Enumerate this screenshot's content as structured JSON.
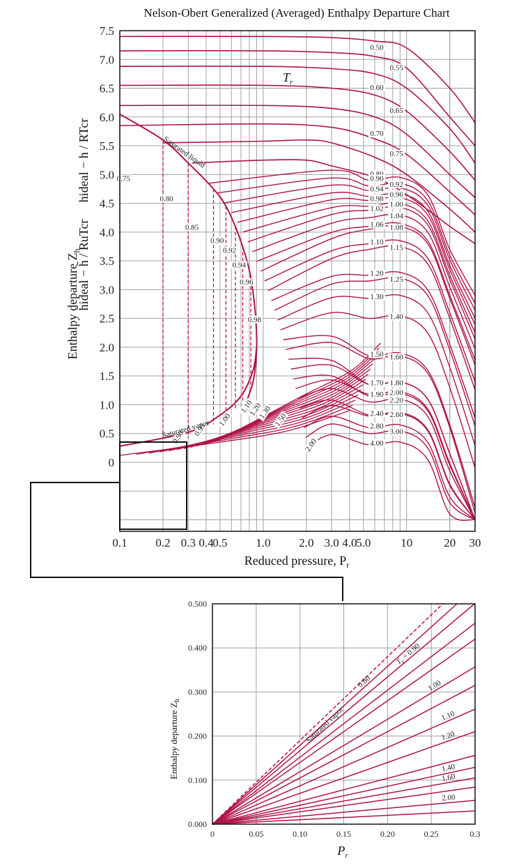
{
  "chart_data": [
    {
      "id": "main",
      "type": "line",
      "title": "Nelson-Obert Generalized (Averaged) Enthalpy Departure Chart",
      "xlabel": "Reduced pressure, P",
      "xlabel_sub": "r",
      "ylabel_main": "Enthalpy departure Z",
      "ylabel_sub": "h",
      "ylabel_formula_1": "h̄ideal − h̄ / RuTcr",
      "ylabel_formula_2": "hideal − h / RTcr",
      "x_scale": "log",
      "xlim": [
        0.1,
        30
      ],
      "ylim": [
        -1.2,
        7.5
      ],
      "y_ticks": [
        "7.5",
        "7.0",
        "6.5",
        "6.0",
        "5.5",
        "5.0",
        "4.5",
        "4.0",
        "3.5",
        "3.0",
        "2.5",
        "2.0",
        "1.5",
        "1.0",
        "0.5",
        "0"
      ],
      "y_tick_values": [
        7.5,
        7.0,
        6.5,
        6.0,
        5.5,
        5.0,
        4.5,
        4.0,
        3.5,
        3.0,
        2.5,
        2.0,
        1.5,
        1.0,
        0.5,
        0
      ],
      "x_ticks": [
        "0.1",
        "0.2",
        "0.3",
        "0.4",
        "0.5",
        "1.0",
        "2.0",
        "3.0",
        "4.0",
        "5.0",
        "10",
        "20",
        "30"
      ],
      "x_tick_values": [
        0.1,
        0.2,
        0.3,
        0.4,
        0.5,
        1.0,
        2.0,
        3.0,
        4.0,
        5.0,
        10,
        20,
        30
      ],
      "grid": true,
      "tr_symbol": "T",
      "tr_symbol_sub": "r",
      "saturated_liquid_label": "Saturated liquid",
      "saturated_vapor_label": "Saturated vapor",
      "saturated_liquid": {
        "x": [
          0.1,
          0.2,
          0.3,
          0.45,
          0.55,
          0.65,
          0.75,
          0.82,
          0.88,
          0.9,
          0.85,
          0.72
        ],
        "y": [
          6.05,
          5.6,
          5.2,
          4.75,
          4.45,
          4.05,
          3.6,
          3.2,
          2.6,
          2.0,
          1.4,
          0.9
        ]
      },
      "saturated_vapor": {
        "x": [
          0.1,
          0.3,
          0.5,
          0.7,
          0.85,
          0.9
        ],
        "y": [
          0.28,
          0.52,
          0.82,
          1.15,
          1.6,
          2.0
        ]
      },
      "liquid_series": [
        {
          "name": "0.50",
          "label_x": 6.2,
          "x": [
            0.1,
            1,
            3,
            6,
            10,
            20,
            30
          ],
          "y": [
            7.4,
            7.4,
            7.38,
            7.32,
            7.2,
            6.5,
            5.9
          ]
        },
        {
          "name": "0.55",
          "label_x": 8.5,
          "x": [
            0.1,
            1,
            3,
            6,
            10,
            20,
            30
          ],
          "y": [
            7.15,
            7.15,
            7.12,
            7.05,
            6.85,
            6.0,
            5.5
          ]
        },
        {
          "name": "0.60",
          "label_x": 6.2,
          "x": [
            0.1,
            1,
            3,
            6,
            10,
            20,
            30
          ],
          "y": [
            6.88,
            6.88,
            6.84,
            6.75,
            6.5,
            5.8,
            5.2
          ]
        },
        {
          "name": "0.65",
          "label_x": 8.5,
          "x": [
            0.1,
            1,
            3,
            6,
            10,
            20,
            30
          ],
          "y": [
            6.55,
            6.55,
            6.5,
            6.38,
            6.1,
            5.4,
            4.9
          ]
        },
        {
          "name": "0.70",
          "label_x": 6.2,
          "x": [
            0.1,
            1,
            3,
            6,
            10,
            20,
            30
          ],
          "y": [
            6.2,
            6.2,
            6.15,
            6.0,
            5.7,
            5.0,
            4.6
          ]
        },
        {
          "name": "0.75",
          "label_x": 8.5,
          "x": [
            0.1,
            1,
            3,
            6,
            10,
            20,
            30
          ],
          "y": [
            5.85,
            5.88,
            5.82,
            5.62,
            5.35,
            4.7,
            4.3
          ]
        },
        {
          "name": "0.80",
          "label_x": 6.2,
          "x": [
            0.2,
            1,
            2,
            3,
            6,
            10,
            20,
            30
          ],
          "y": [
            5.55,
            5.58,
            5.6,
            5.55,
            5.3,
            5.0,
            4.4,
            4.0
          ]
        },
        {
          "name": "0.85",
          "label_x": 8.5,
          "x": [
            0.32,
            1,
            2,
            3,
            6,
            10,
            20,
            30
          ],
          "y": [
            5.2,
            5.25,
            5.25,
            5.15,
            4.95,
            4.65,
            4.1,
            3.8
          ]
        }
      ],
      "right_labels": [
        {
          "name": "0.90",
          "x": 6.2,
          "y": 4.9
        },
        {
          "name": "0.92",
          "x": 8.5,
          "y": 4.8
        },
        {
          "name": "0.94",
          "x": 6.2,
          "y": 4.72
        },
        {
          "name": "0.96",
          "x": 8.5,
          "y": 4.62
        },
        {
          "name": "0.98",
          "x": 6.2,
          "y": 4.55
        },
        {
          "name": "1.00",
          "x": 8.5,
          "y": 4.45
        },
        {
          "name": "1.02",
          "x": 6.2,
          "y": 4.38
        },
        {
          "name": "1.04",
          "x": 8.5,
          "y": 4.25
        },
        {
          "name": "1.06",
          "x": 6.2,
          "y": 4.1
        },
        {
          "name": "1.08",
          "x": 8.5,
          "y": 4.05
        },
        {
          "name": "1.10",
          "x": 6.2,
          "y": 3.8
        },
        {
          "name": "1.15",
          "x": 8.5,
          "y": 3.7
        },
        {
          "name": "1.20",
          "x": 6.2,
          "y": 3.25
        },
        {
          "name": "1.25",
          "x": 8.5,
          "y": 3.15
        },
        {
          "name": "1.30",
          "x": 6.2,
          "y": 2.85
        },
        {
          "name": "1.40",
          "x": 8.5,
          "y": 2.5
        },
        {
          "name": "1.50",
          "x": 6.2,
          "y": 1.85
        },
        {
          "name": "1.60",
          "x": 8.5,
          "y": 1.8
        },
        {
          "name": "1.70",
          "x": 6.2,
          "y": 1.35
        },
        {
          "name": "1.80",
          "x": 8.5,
          "y": 1.35
        },
        {
          "name": "1.90",
          "x": 6.2,
          "y": 1.15
        },
        {
          "name": "2.00",
          "x": 8.5,
          "y": 1.18
        },
        {
          "name": "2.20",
          "x": 8.5,
          "y": 1.05
        },
        {
          "name": "2.40",
          "x": 6.2,
          "y": 0.82
        },
        {
          "name": "2.60",
          "x": 8.5,
          "y": 0.8
        },
        {
          "name": "2.80",
          "x": 6.2,
          "y": 0.6
        },
        {
          "name": "3.00",
          "x": 8.5,
          "y": 0.5
        },
        {
          "name": "4.00",
          "x": 6.2,
          "y": 0.3
        }
      ],
      "vapor_labels": [
        {
          "name": "0.90",
          "x": 0.26,
          "y": 0.42
        },
        {
          "name": "0.95",
          "x": 0.37,
          "y": 0.55
        },
        {
          "name": "1.00",
          "x": 0.55,
          "y": 0.72
        },
        {
          "name": "1.10",
          "x": 0.78,
          "y": 0.95
        },
        {
          "name": "1.20",
          "x": 0.9,
          "y": 0.9
        },
        {
          "name": "1.30",
          "x": 1.05,
          "y": 0.85
        },
        {
          "name": "1.50",
          "x": 1.35,
          "y": 0.72
        },
        {
          "name": "2.00",
          "x": 2.2,
          "y": 0.28
        }
      ],
      "sat_markers": [
        {
          "name": "0.75",
          "x": 0.1,
          "y": 4.9
        },
        {
          "name": "0.80",
          "x": 0.2,
          "y": 4.55
        },
        {
          "name": "0.85",
          "x": 0.3,
          "y": 4.05
        },
        {
          "name": "0.90",
          "x": 0.45,
          "y": 3.82
        },
        {
          "name": "0.92",
          "x": 0.55,
          "y": 3.65
        },
        {
          "name": "0.94",
          "x": 0.64,
          "y": 3.4
        },
        {
          "name": "0.96",
          "x": 0.72,
          "y": 3.1
        },
        {
          "name": "0.98",
          "x": 0.82,
          "y": 2.45
        }
      ],
      "sat_dashed_x": [
        0.1,
        0.2,
        0.3,
        0.45,
        0.55,
        0.64,
        0.72,
        0.82
      ],
      "sat_dashed_ytop": [
        6.05,
        5.6,
        5.2,
        4.75,
        4.45,
        4.1,
        3.75,
        3.25
      ],
      "sat_dashed_ybot": [
        0.28,
        0.36,
        0.42,
        0.66,
        0.78,
        0.92,
        1.05,
        1.25
      ],
      "mid_curves_y_at_right": [
        4.9,
        4.8,
        4.72,
        4.62,
        4.55,
        4.45,
        4.38,
        4.25,
        4.1,
        4.05,
        3.8,
        3.7,
        3.25,
        3.15,
        2.85,
        2.5,
        1.85,
        1.8,
        1.35,
        1.35,
        1.15,
        1.18,
        1.05,
        0.82,
        0.8,
        0.6,
        0.5,
        0.3
      ],
      "colors": {
        "curve": "#b0124a",
        "dashed": "#c4124c",
        "grid": "#a0a0a0",
        "frame": "#111111"
      }
    },
    {
      "id": "inset",
      "type": "line",
      "xlabel": "P",
      "xlabel_sub": "r",
      "ylabel_main": "Enthalpy departure Z",
      "ylabel_sub": "h",
      "x_scale": "linear",
      "xlim": [
        0,
        0.3
      ],
      "ylim": [
        0,
        0.5
      ],
      "x_ticks": [
        "0",
        "0.05",
        "0.10",
        "0.15",
        "0.20",
        "0.25",
        "0.3"
      ],
      "x_tick_values": [
        0,
        0.05,
        0.1,
        0.15,
        0.2,
        0.25,
        0.3
      ],
      "y_ticks": [
        "0.500",
        "0.400",
        "0.300",
        "0.200",
        "0.100",
        "0.000"
      ],
      "y_tick_values": [
        0.5,
        0.4,
        0.3,
        0.2,
        0.1,
        0.0
      ],
      "grid": true,
      "saturated_vapor_label": "Saturated vapor",
      "series": [
        {
          "name": "0.80",
          "slope": 1.79,
          "label_x": 0.175,
          "show_label": true
        },
        {
          "name": "T",
          "name_sub": "r",
          "name_tail": " = 0.90",
          "slope": 1.67,
          "label_x": 0.225,
          "show_label": true
        },
        {
          "name": "",
          "slope": 1.52,
          "label_x": 0,
          "show_label": false
        },
        {
          "name": "",
          "slope": 1.4,
          "label_x": 0,
          "show_label": false
        },
        {
          "name": "1.00",
          "slope": 1.19,
          "label_x": 0.255,
          "show_label": true
        },
        {
          "name": "",
          "slope": 1.05,
          "label_x": 0,
          "show_label": false
        },
        {
          "name": "1.10",
          "slope": 0.87,
          "label_x": 0.27,
          "show_label": true
        },
        {
          "name": "1.20",
          "slope": 0.7,
          "label_x": 0.27,
          "show_label": true
        },
        {
          "name": "",
          "slope": 0.52,
          "label_x": 0,
          "show_label": false
        },
        {
          "name": "1.40",
          "slope": 0.43,
          "label_x": 0.27,
          "show_label": true
        },
        {
          "name": "1.60",
          "slope": 0.35,
          "label_x": 0.27,
          "show_label": true
        },
        {
          "name": "",
          "slope": 0.28,
          "label_x": 0,
          "show_label": false
        },
        {
          "name": "2.00",
          "slope": 0.18,
          "label_x": 0.27,
          "show_label": true
        },
        {
          "name": "",
          "slope": 0.1,
          "label_x": 0,
          "show_label": false
        }
      ],
      "saturated_vapor_slope": 1.9
    }
  ]
}
